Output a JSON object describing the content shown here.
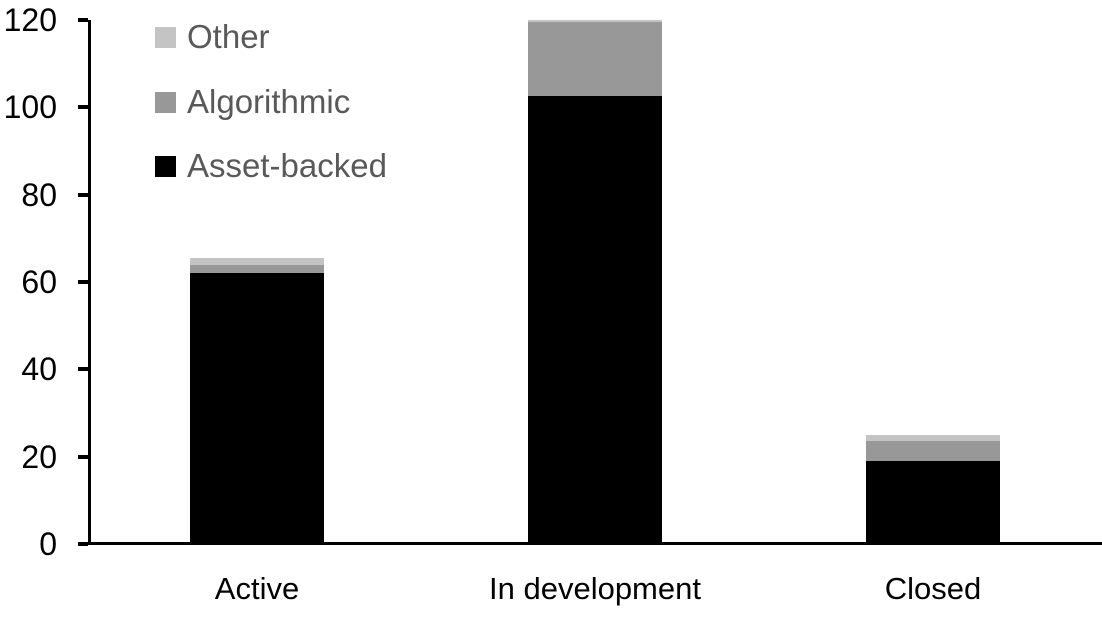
{
  "chart_data": {
    "type": "bar",
    "variant": "stacked",
    "title": "",
    "xlabel": "",
    "ylabel": "",
    "background_color": "#FFFFFF",
    "axis_color": "#000000",
    "tick_label_color": "#000000",
    "category_label_color": "#000000",
    "categories": [
      "Active",
      "In development",
      "Closed"
    ],
    "series": [
      {
        "name": "Asset-backed",
        "color": "#000000",
        "values": [
          62,
          102.5,
          19
        ]
      },
      {
        "name": "Algorithmic",
        "color": "#989898",
        "values": [
          2,
          17,
          4.5
        ]
      },
      {
        "name": "Other",
        "color": "#C4C4C4",
        "values": [
          1.5,
          0.5,
          1.5
        ]
      }
    ],
    "y_axis": {
      "min": 0,
      "max": 120,
      "tick_step": 20,
      "ticks": [
        0,
        20,
        40,
        60,
        80,
        100,
        120
      ]
    },
    "legend": {
      "position": "top-left-inside",
      "order": [
        "Other",
        "Algorithmic",
        "Asset-backed"
      ],
      "text_color": "#595959"
    },
    "grid": false
  }
}
